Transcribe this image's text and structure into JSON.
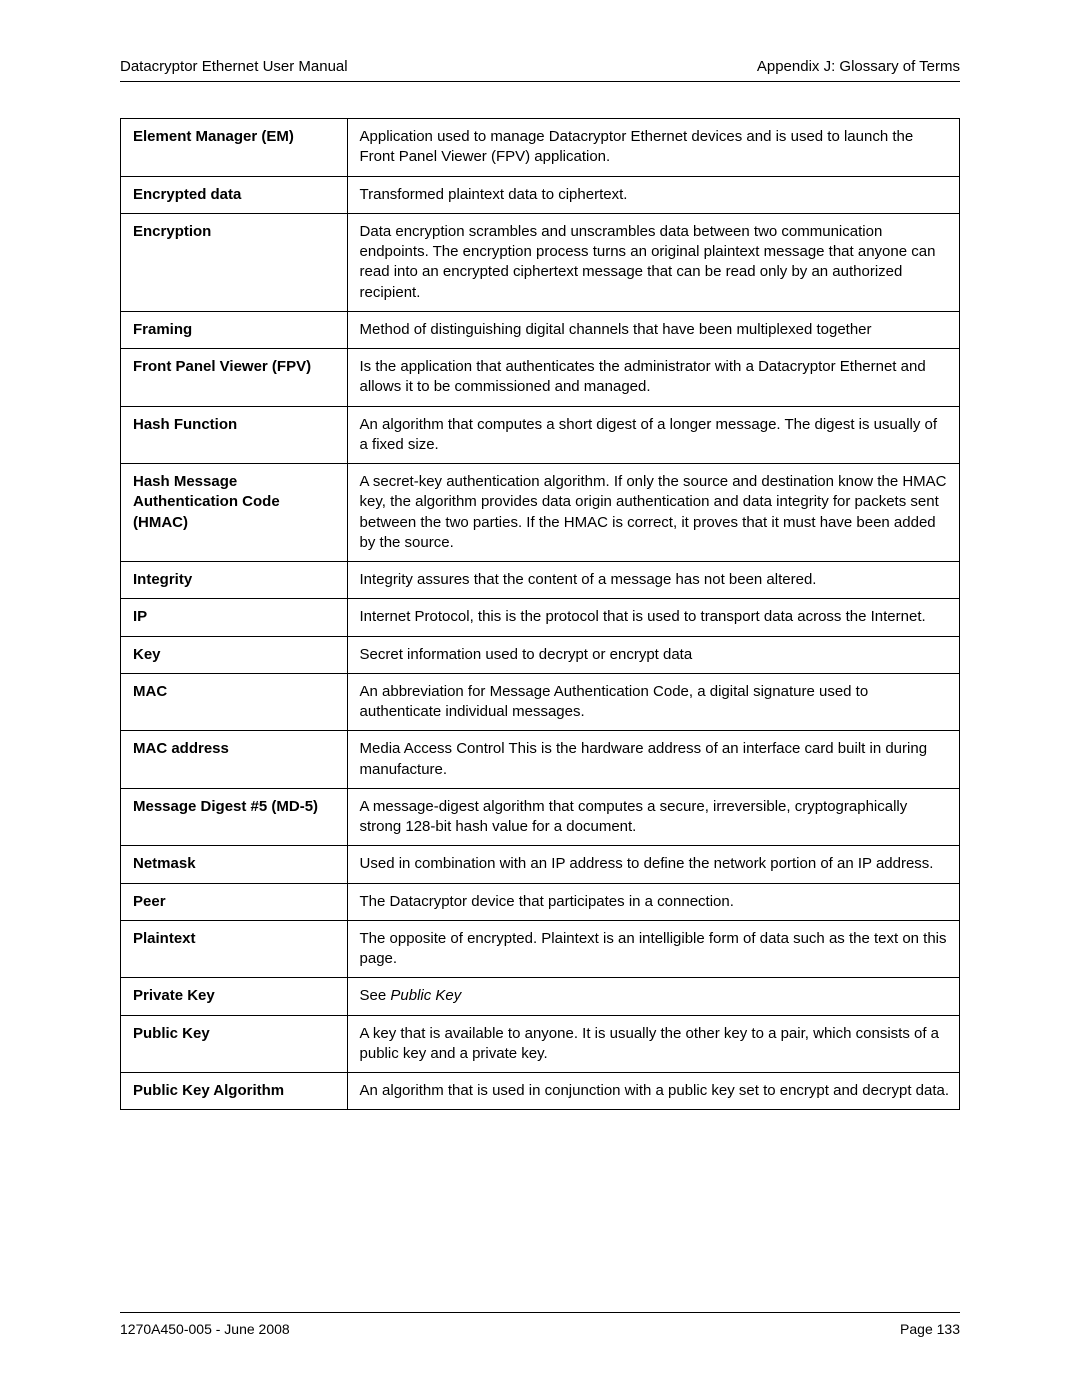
{
  "header": {
    "left": "Datacryptor Ethernet User Manual",
    "right": "Appendix J:  Glossary of Terms"
  },
  "footer": {
    "left": "1270A450-005 -  June 2008",
    "right": "Page 133"
  },
  "glossary": [
    {
      "term": "Element Manager (EM)",
      "def": "Application used to manage Datacryptor Ethernet devices and is used to launch the Front Panel Viewer (FPV) application."
    },
    {
      "term": "Encrypted data",
      "def": "Transformed plaintext data to ciphertext."
    },
    {
      "term": "Encryption",
      "def": "Data encryption scrambles and unscrambles data between two communication endpoints. The encryption process turns an original plaintext message that anyone can read into an encrypted ciphertext message that can be read only by an authorized recipient."
    },
    {
      "term": "Framing",
      "def": "Method of distinguishing digital channels that have been multiplexed together"
    },
    {
      "term": "Front Panel Viewer (FPV)",
      "def": "Is the application that authenticates the administrator with a Datacryptor Ethernet and allows it to be commissioned and managed."
    },
    {
      "term": "Hash Function",
      "def": "An algorithm that computes a short digest of a longer message. The digest is usually of a fixed size."
    },
    {
      "term": "Hash Message Authentication Code (HMAC)",
      "def": "A secret-key authentication algorithm. If only the source and destination know the HMAC key, the algorithm provides data origin authentication and data integrity for packets sent between the two parties. If the HMAC is correct, it proves that it must have been added by the source."
    },
    {
      "term": "Integrity",
      "def": "Integrity assures that the content of a message has not been altered."
    },
    {
      "term": "IP",
      "def": "Internet Protocol, this is the protocol that is used to transport data across the Internet."
    },
    {
      "term": "Key",
      "def": "Secret information used to decrypt or encrypt data"
    },
    {
      "term": "MAC",
      "def": "An abbreviation for Message Authentication Code, a digital signature used to authenticate individual messages."
    },
    {
      "term": "MAC address",
      "def": "Media Access Control This is the hardware address of an interface card built in during manufacture."
    },
    {
      "term": "Message Digest #5 (MD-5)",
      "def": "A message-digest algorithm that computes a secure, irreversible, cryptographically strong 128-bit hash value for a document."
    },
    {
      "term": "Netmask",
      "def": "Used in combination with an IP address to define the network portion of an IP address."
    },
    {
      "term": "Peer",
      "def": "The Datacryptor device that participates in a connection."
    },
    {
      "term": "Plaintext",
      "def": "The opposite of encrypted. Plaintext is an intelligible form of data such as the text on this page."
    },
    {
      "term": "Private Key",
      "def_prefix": "See ",
      "def_ref": "Public Key"
    },
    {
      "term": "Public Key",
      "def": "A key that is available to anyone. It is usually the other key to a pair, which consists of a public key and a private key."
    },
    {
      "term": "Public Key Algorithm",
      "def": "An algorithm that is used in conjunction with a public key set to encrypt and decrypt data."
    }
  ]
}
